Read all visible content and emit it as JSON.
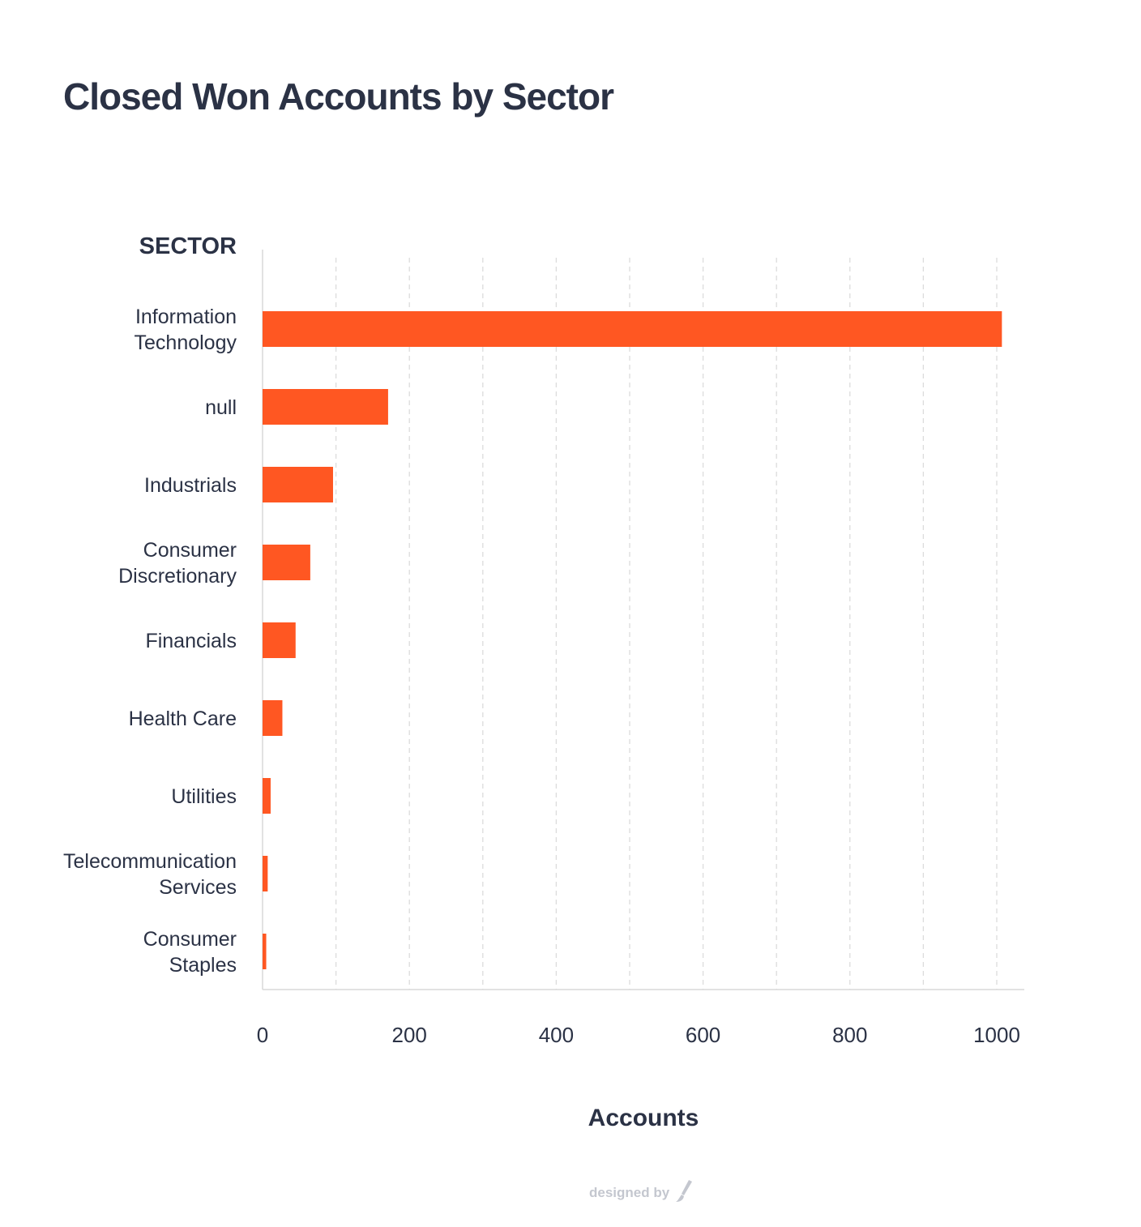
{
  "chart_data": {
    "type": "bar",
    "orientation": "horizontal",
    "title": "Closed Won Accounts by Sector",
    "ylabel": "SECTOR",
    "xlabel": "Accounts",
    "categories": [
      "Information Technology",
      "null",
      "Industrials",
      "Consumer Discretionary",
      "Financials",
      "Health Care",
      "Utilities",
      "Telecommunication Services",
      "Consumer Staples"
    ],
    "category_lines": [
      [
        "Information",
        "Technology"
      ],
      [
        "null"
      ],
      [
        "Industrials"
      ],
      [
        "Consumer",
        "Discretionary"
      ],
      [
        "Financials"
      ],
      [
        "Health Care"
      ],
      [
        "Utilities"
      ],
      [
        "Telecommunication",
        "Services"
      ],
      [
        "Consumer",
        "Staples"
      ]
    ],
    "values": [
      1007,
      171,
      96,
      65,
      45,
      27,
      11,
      7,
      5
    ],
    "xlim": [
      0,
      1040
    ],
    "xticks": [
      0,
      200,
      400,
      600,
      800,
      1000
    ],
    "grid_values": [
      100,
      200,
      300,
      400,
      500,
      600,
      700,
      800,
      900,
      1000
    ],
    "grid": true,
    "bar_color": "#ff5722"
  },
  "credit": {
    "text": "designed by"
  },
  "colors": {
    "text": "#2b3245",
    "grid": "#dcdcdc",
    "axis": "#d8d8d8",
    "credit": "#c4c7cf"
  }
}
